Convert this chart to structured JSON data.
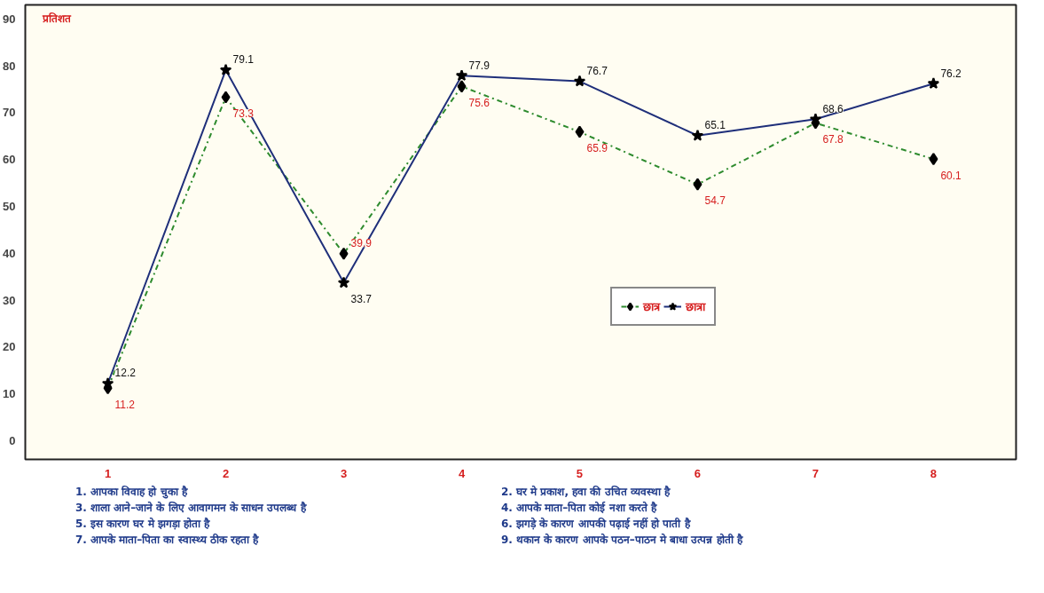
{
  "chart_data": {
    "type": "line",
    "ylabel": "प्रतिशत",
    "categories": [
      "1",
      "2",
      "3",
      "4",
      "5",
      "6",
      "7",
      "8"
    ],
    "series": [
      {
        "name": "छात्र",
        "color": "#2e8b2e",
        "marker": "diamond",
        "line_style": "dashed",
        "values": [
          11.2,
          73.3,
          39.9,
          75.6,
          65.9,
          54.7,
          67.8,
          60.1
        ]
      },
      {
        "name": "छात्रा",
        "color": "#1f2f7a",
        "marker": "star",
        "line_style": "solid",
        "values": [
          12.2,
          79.1,
          33.7,
          77.9,
          76.7,
          65.1,
          68.6,
          76.2
        ]
      }
    ],
    "ylim": [
      -4,
      93
    ],
    "yticks": [
      0,
      10,
      20,
      30,
      40,
      50,
      60,
      70,
      80,
      90
    ],
    "data_labels": true,
    "legend": "right",
    "grid": false,
    "annotations": [
      "1. आपका विवाह हो चुका है",
      "2. घर मे प्रकाश, हवा की उचित व्यवस्था है",
      "3. शाला आने–जाने के लिए आवागमन के साधन उपलब्ध है",
      "4. आपके माता–पिता कोई नशा करते है",
      "5. इस कारण घर मे झगड़ा होता है",
      "6. झगड़े के कारण आपकी पढ़ाई नहीं हो पाती है",
      "7. आपके माता–पिता का स्वास्थ्य ठीक रहता है",
      "9. थकान के कारण आपके पठन–पाठन मे बाधा उत्पन्न होती है"
    ]
  }
}
